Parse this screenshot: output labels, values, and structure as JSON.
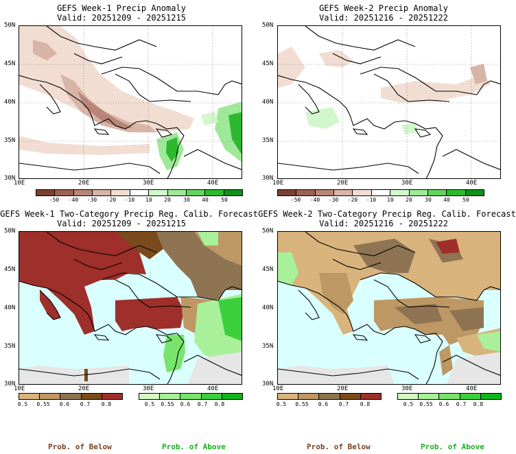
{
  "panels": {
    "p1": {
      "title": "GEFS Week-1 Precip Anomaly",
      "valid": "Valid: 20251209 - 20251215"
    },
    "p2": {
      "title": "GEFS Week-2 Precip Anomaly",
      "valid": "Valid: 20251216 - 20251222"
    },
    "p3": {
      "title": "GEFS Week-1 Two-Category Precip Reg. Calib. Forecast",
      "valid": "Valid: 20251209 - 20251215"
    },
    "p4": {
      "title": "GEFS Week-2 Two-Category Precip Reg. Calib. Forecast",
      "valid": "Valid: 20251216 - 20251222"
    }
  },
  "axes": {
    "lat": [
      "50N",
      "45N",
      "40N",
      "35N",
      "30N"
    ],
    "lon": [
      "10E",
      "20E",
      "30E",
      "40E"
    ]
  },
  "anomaly_colorbar": {
    "labels": [
      "-50",
      "-40",
      "-30",
      "-20",
      "-10",
      "10",
      "20",
      "30",
      "40",
      "50"
    ],
    "colors": [
      "#7a4032",
      "#9a6252",
      "#b88678",
      "#d8b4a6",
      "#f1ddd2",
      "#ffffff",
      "#d2f7cc",
      "#9ee898",
      "#62d45e",
      "#2eb830",
      "#108f1a"
    ]
  },
  "below_colorbar": {
    "labels": [
      "0.5",
      "0.55",
      "0.6",
      "0.7",
      "0.8"
    ],
    "colors": [
      "#d9b37c",
      "#bd9864",
      "#8f7453",
      "#7a4a1c",
      "#9e2f2a"
    ]
  },
  "above_colorbar": {
    "labels": [
      "0.5",
      "0.55",
      "0.6",
      "0.7",
      "0.8"
    ],
    "colors": [
      "#d5f9c3",
      "#a8f09a",
      "#78e46c",
      "#3ccf3c",
      "#12b41a"
    ]
  },
  "footer": {
    "below_left": "Prob. of Below",
    "above_left": "Prob. of Above",
    "below_right": "Prob. of Below",
    "above_right": "Prob. of Above"
  },
  "colors": {
    "sea": "#d9ffff",
    "nodata": "#e6e6e6",
    "below_label": "#7a4020",
    "above_label": "#18b018"
  }
}
